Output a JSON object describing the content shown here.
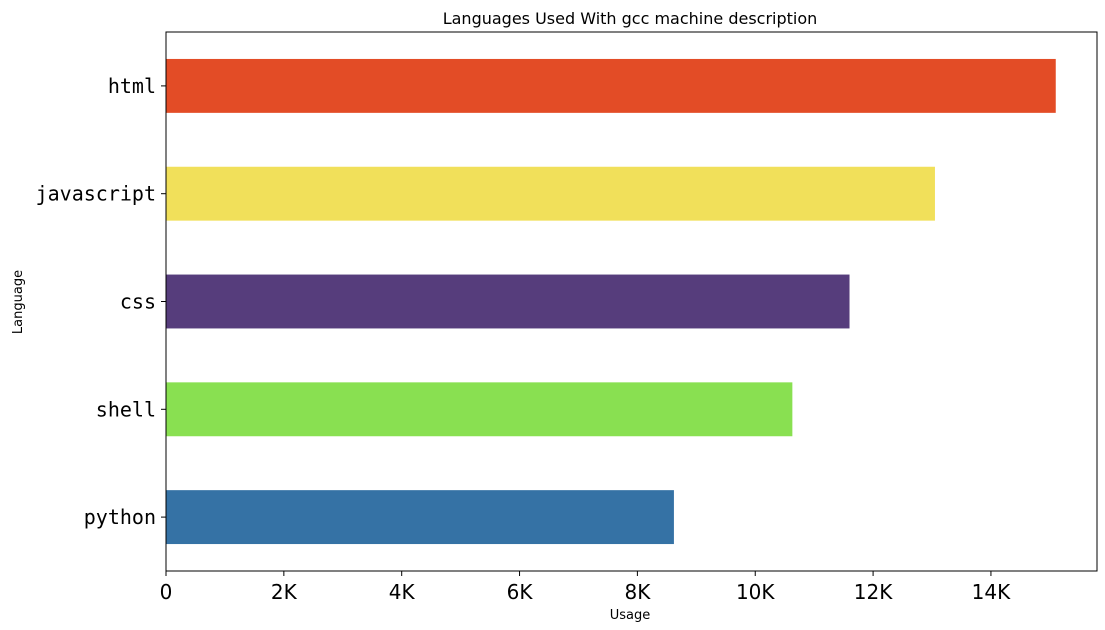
{
  "chart_data": {
    "type": "bar",
    "orientation": "horizontal",
    "title": "Languages Used With gcc machine description",
    "xlabel": "Usage",
    "ylabel": "Language",
    "categories": [
      "html",
      "javascript",
      "css",
      "shell",
      "python"
    ],
    "values": [
      15100,
      13050,
      11600,
      10630,
      8620
    ],
    "colors": [
      "#e34c26",
      "#f1e05a",
      "#563d7c",
      "#89e051",
      "#3572a5"
    ],
    "xlim": [
      0,
      15800
    ],
    "xticks": [
      0,
      2000,
      4000,
      6000,
      8000,
      10000,
      12000,
      14000
    ],
    "xtick_labels": [
      "0",
      "2K",
      "4K",
      "6K",
      "8K",
      "10K",
      "12K",
      "14K"
    ],
    "grid": false,
    "legend": "none"
  }
}
